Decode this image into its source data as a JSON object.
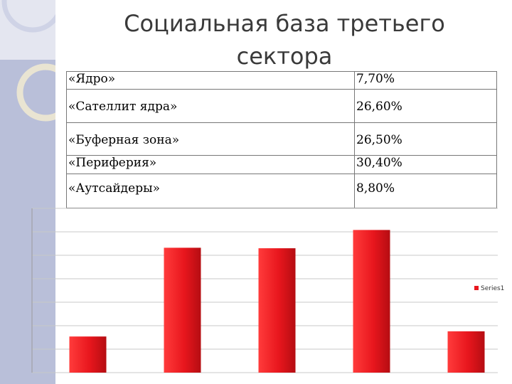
{
  "title": "Социальная база третьего сектора",
  "table": {
    "rows": [
      {
        "label": "«Ядро»",
        "value": "7,70%"
      },
      {
        "label": "«Сателлит ядра»",
        "value": "26,60%"
      },
      {
        "label": "«Буферная зона»",
        "value": "26,50%"
      },
      {
        "label": "«Периферия»",
        "value": "30,40%"
      },
      {
        "label": "«Аутсайдеры»",
        "value": "8,80%"
      }
    ]
  },
  "chart_data": {
    "type": "bar",
    "categories": [
      "«Ядро»",
      "«Сателлит ядра»",
      "«Буферная зона»",
      "«Периферия»",
      "«Аутсайдеры»"
    ],
    "series": [
      {
        "name": "Series1",
        "values": [
          7.7,
          26.6,
          26.5,
          30.4,
          8.8
        ],
        "color": "#e8161d"
      }
    ],
    "ylim": [
      0,
      35
    ],
    "grid": true,
    "legend_position": "right",
    "title": "",
    "xlabel": "",
    "ylabel": ""
  }
}
